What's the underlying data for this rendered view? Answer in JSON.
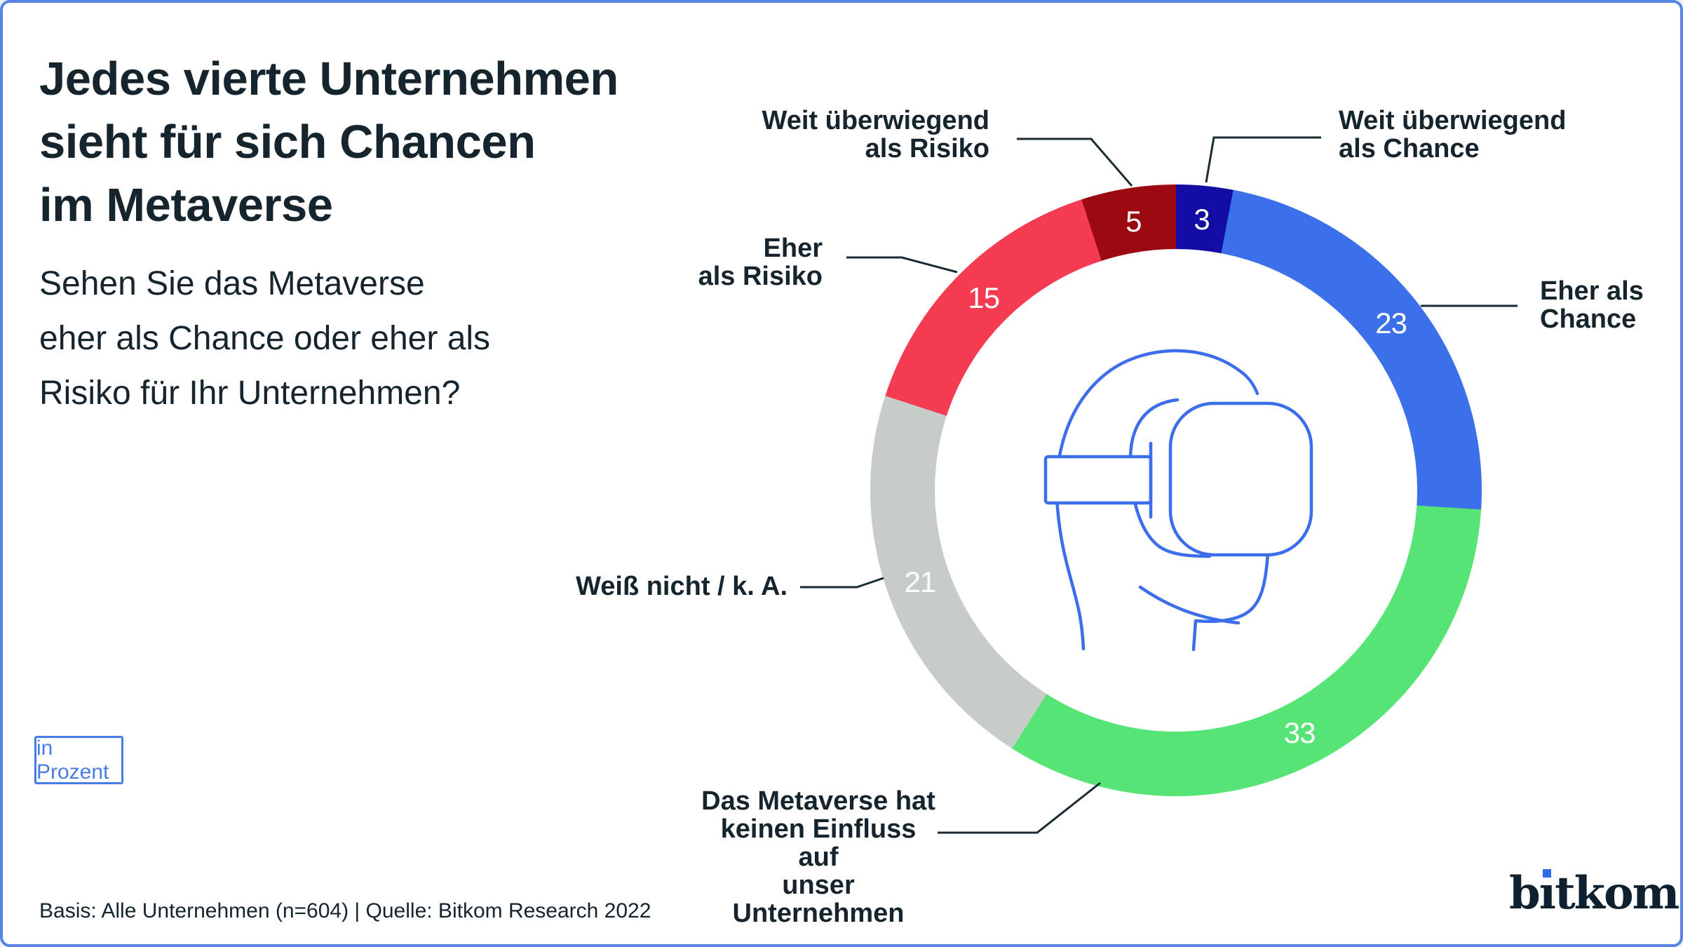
{
  "title": {
    "lines": [
      "Jedes vierte Unternehmen",
      "sieht für sich Chancen",
      "im Metaverse"
    ]
  },
  "subtitle": {
    "lines": [
      "Sehen Sie das Metaverse",
      "eher als Chance oder eher als",
      "Risiko für Ihr Unternehmen?"
    ]
  },
  "unit_badge": "in Prozent",
  "footnote": "Basis: Alle Unternehmen (n=604) | Quelle: Bitkom Research 2022",
  "logo": {
    "prefix": "b",
    "i_char": "ı",
    "rest": "tkom"
  },
  "colors": {
    "text_dark": "#15242D",
    "accent_blue": "#4A7CE6",
    "canvas_border": "#5584E4",
    "illustration_stroke": "#3C6EEB",
    "callout_line": "#1B2B33",
    "value_text": "#FFFFFF",
    "logo_dot": "#2E6AE8",
    "logo_text": "#0E2130"
  },
  "chart_data": {
    "type": "pie",
    "donut": true,
    "unit": "Prozent",
    "start_angle_deg": 0,
    "direction": "clockwise",
    "total": 100,
    "segments": [
      {
        "label": "Weit überwiegend als Chance",
        "label_lines": [
          "Weit überwiegend",
          "als Chance"
        ],
        "value": 3,
        "color": "#130DA5"
      },
      {
        "label": "Eher als Chance",
        "label_lines": [
          "Eher als",
          "Chance"
        ],
        "value": 23,
        "color": "#3C70EA"
      },
      {
        "label": "Das Metaverse hat keinen Einfluss auf unser Unternehmen",
        "label_lines": [
          "Das Metaverse hat",
          "keinen Einfluss auf",
          "unser Unternehmen"
        ],
        "value": 33,
        "color": "#57E476"
      },
      {
        "label": "Weiß nicht / k. A.",
        "label_lines": [
          "Weiß nicht / k. A."
        ],
        "value": 21,
        "color": "#C6CCC8"
      },
      {
        "label": "Eher als Risiko",
        "label_lines": [
          "Eher",
          "als Risiko"
        ],
        "value": 15,
        "color": "#F43B51"
      },
      {
        "label": "Weit überwiegend als Risiko",
        "label_lines": [
          "Weit überwiegend",
          "als Risiko"
        ],
        "value": 5,
        "color": "#9A0A10"
      }
    ]
  }
}
